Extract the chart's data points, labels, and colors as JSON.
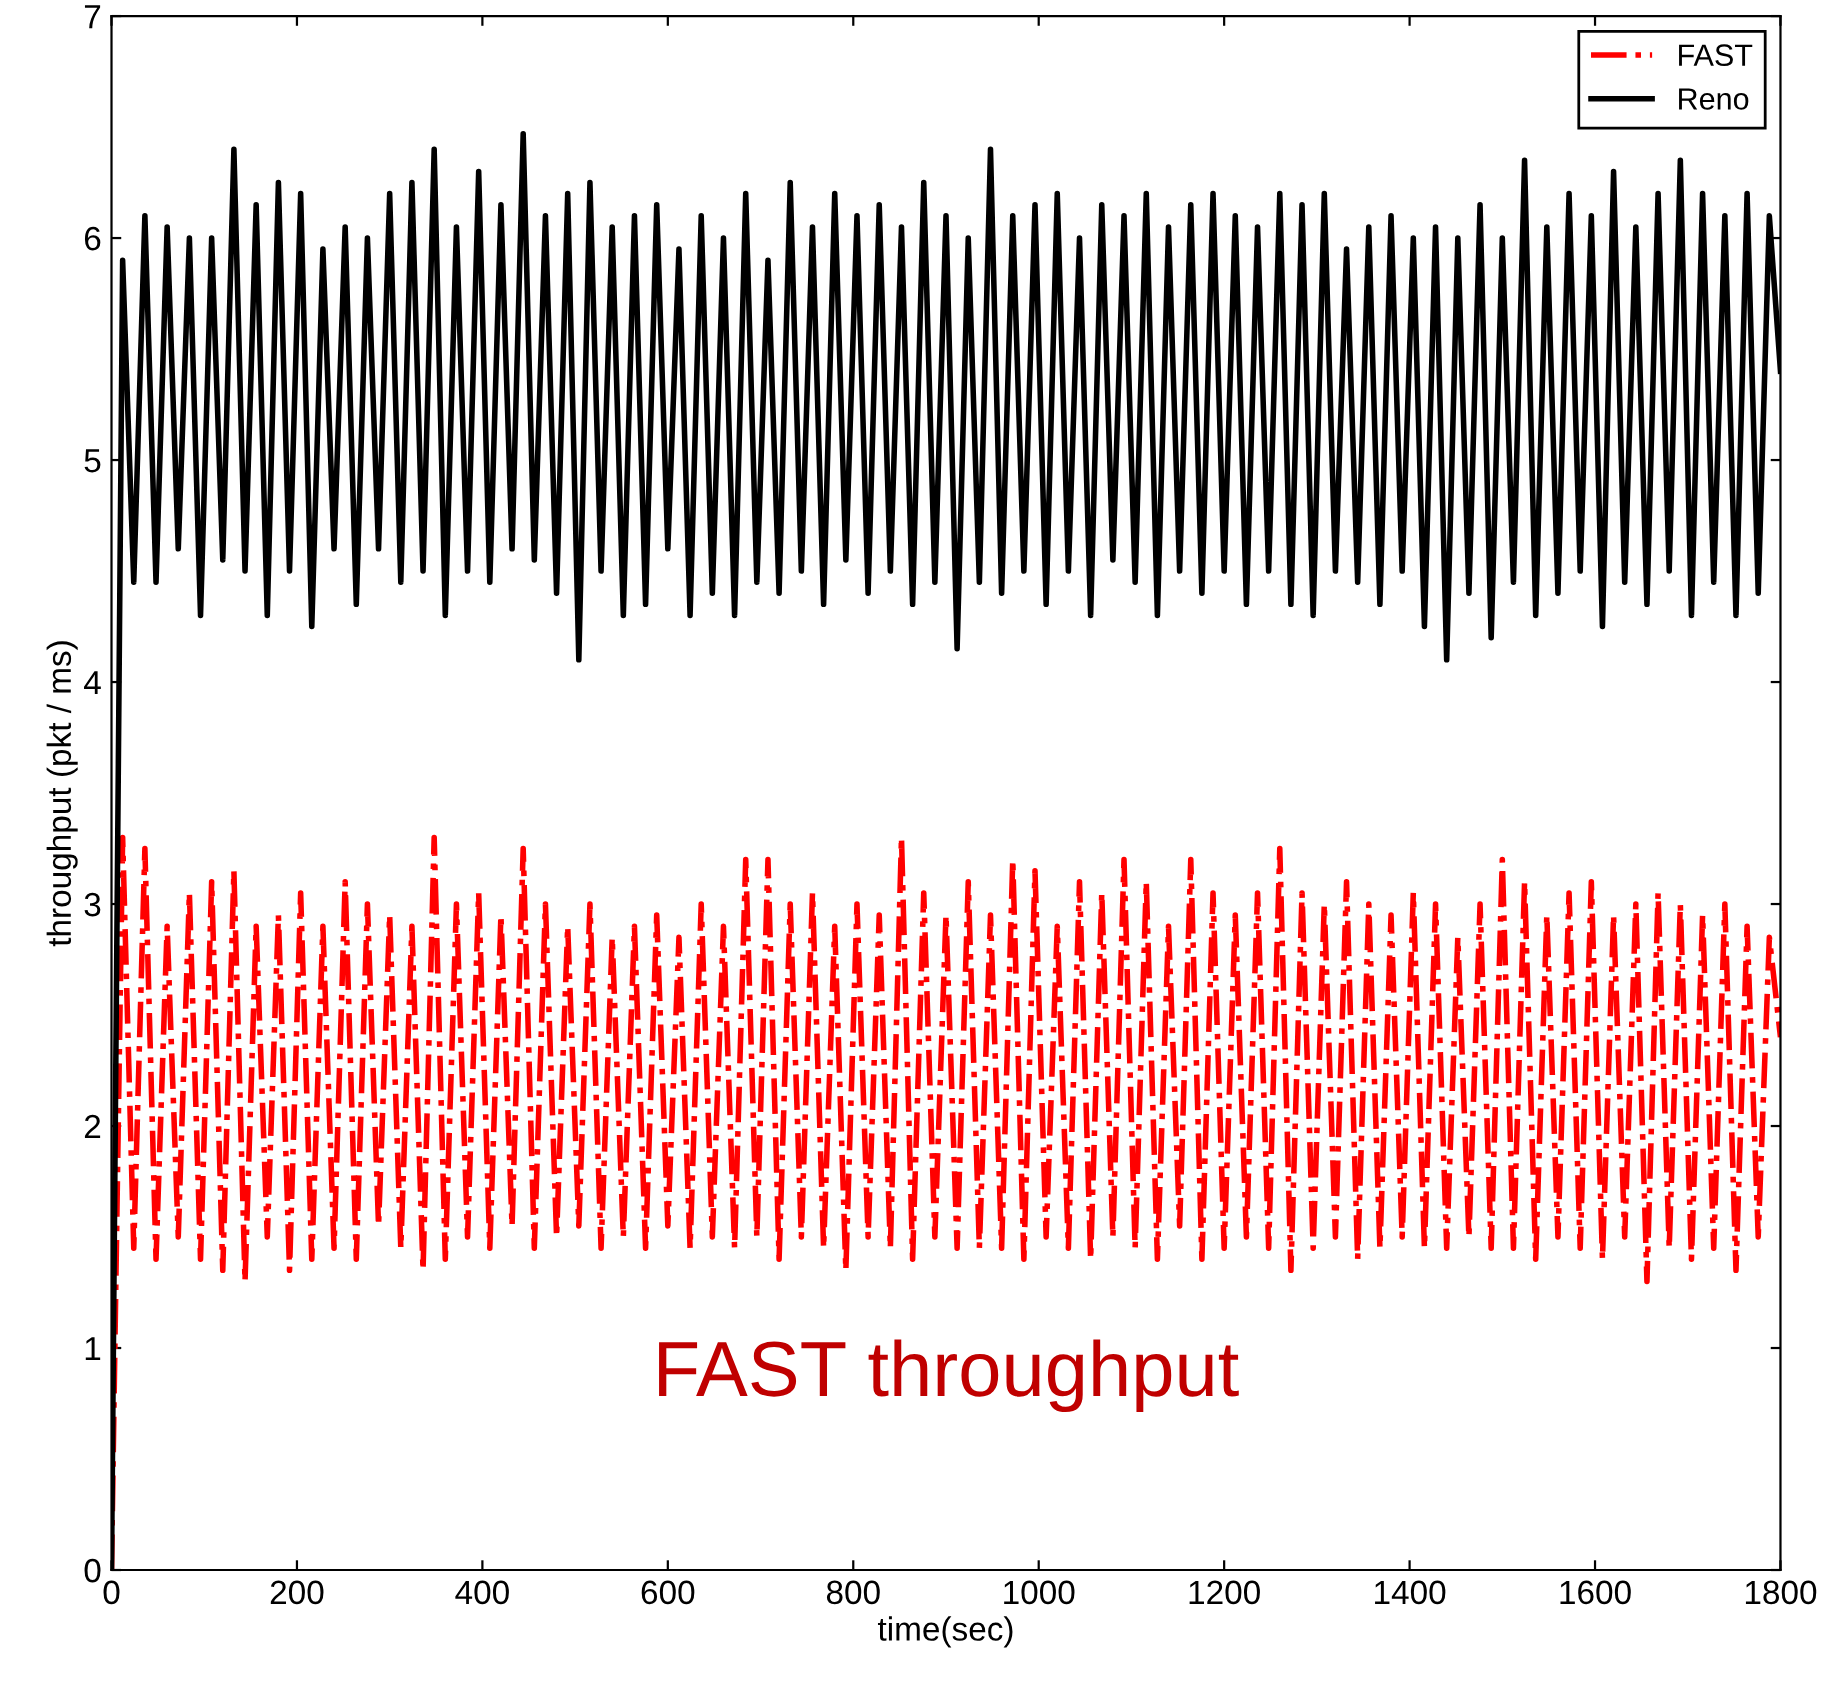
{
  "chart_data": {
    "type": "line",
    "xlabel": "time(sec)",
    "ylabel": "throughput (pkt / ms)",
    "x": [
      0,
      12,
      24,
      36,
      48,
      60,
      72,
      84,
      96,
      108,
      120,
      132,
      144,
      156,
      168,
      180,
      192,
      204,
      216,
      228,
      240,
      252,
      264,
      276,
      288,
      300,
      312,
      324,
      336,
      348,
      360,
      372,
      384,
      396,
      408,
      420,
      432,
      444,
      456,
      468,
      480,
      492,
      504,
      516,
      528,
      540,
      552,
      564,
      576,
      588,
      600,
      612,
      624,
      636,
      648,
      660,
      672,
      684,
      696,
      708,
      720,
      732,
      744,
      756,
      768,
      780,
      792,
      804,
      816,
      828,
      840,
      852,
      864,
      876,
      888,
      900,
      912,
      924,
      936,
      948,
      960,
      972,
      984,
      996,
      1008,
      1020,
      1032,
      1044,
      1056,
      1068,
      1080,
      1092,
      1104,
      1116,
      1128,
      1140,
      1152,
      1164,
      1176,
      1188,
      1200,
      1212,
      1224,
      1236,
      1248,
      1260,
      1272,
      1284,
      1296,
      1308,
      1320,
      1332,
      1344,
      1356,
      1368,
      1380,
      1392,
      1404,
      1416,
      1428,
      1440,
      1452,
      1464,
      1476,
      1488,
      1500,
      1512,
      1524,
      1536,
      1548,
      1560,
      1572,
      1584,
      1596,
      1608,
      1620,
      1632,
      1644,
      1656,
      1668,
      1680,
      1692,
      1704,
      1716,
      1728,
      1740,
      1752,
      1764,
      1776,
      1788,
      1800
    ],
    "series": [
      {
        "name": "FAST",
        "color": "#ff0000",
        "line_style": "dashdot",
        "values": [
          0,
          3.3,
          1.45,
          3.25,
          1.4,
          2.9,
          1.5,
          3.05,
          1.4,
          3.1,
          1.35,
          3.15,
          1.3,
          2.9,
          1.5,
          2.95,
          1.35,
          3.05,
          1.4,
          2.9,
          1.45,
          3.1,
          1.4,
          3.0,
          1.55,
          2.95,
          1.45,
          2.9,
          1.35,
          3.3,
          1.4,
          3.0,
          1.5,
          3.05,
          1.45,
          2.95,
          1.55,
          3.25,
          1.45,
          3.0,
          1.5,
          2.9,
          1.55,
          3.0,
          1.45,
          2.85,
          1.5,
          2.9,
          1.45,
          2.95,
          1.55,
          2.85,
          1.45,
          3.0,
          1.5,
          2.9,
          1.45,
          3.2,
          1.5,
          3.2,
          1.4,
          3.0,
          1.5,
          3.05,
          1.45,
          2.9,
          1.35,
          3.0,
          1.5,
          2.95,
          1.45,
          3.3,
          1.4,
          3.05,
          1.5,
          2.95,
          1.45,
          3.1,
          1.45,
          2.95,
          1.45,
          3.2,
          1.4,
          3.15,
          1.5,
          2.9,
          1.45,
          3.1,
          1.4,
          3.05,
          1.5,
          3.2,
          1.45,
          3.1,
          1.4,
          2.9,
          1.55,
          3.2,
          1.4,
          3.05,
          1.45,
          2.95,
          1.5,
          3.05,
          1.45,
          3.25,
          1.35,
          3.05,
          1.45,
          3.0,
          1.5,
          3.1,
          1.4,
          3.0,
          1.45,
          2.95,
          1.5,
          3.05,
          1.45,
          3.0,
          1.45,
          2.85,
          1.5,
          3.0,
          1.45,
          3.2,
          1.45,
          3.1,
          1.4,
          2.95,
          1.5,
          3.05,
          1.45,
          3.1,
          1.4,
          2.95,
          1.5,
          3.0,
          1.3,
          3.05,
          1.45,
          3.0,
          1.4,
          2.95,
          1.45,
          3.0,
          1.35,
          2.9,
          1.5,
          2.85,
          2.4
        ]
      },
      {
        "name": "Reno",
        "color": "#000000",
        "line_style": "solid",
        "values": [
          0,
          5.9,
          4.45,
          6.1,
          4.45,
          6.05,
          4.6,
          6.0,
          4.3,
          6.0,
          4.55,
          6.4,
          4.5,
          6.15,
          4.3,
          6.25,
          4.5,
          6.2,
          4.25,
          5.95,
          4.6,
          6.05,
          4.35,
          6.0,
          4.6,
          6.2,
          4.45,
          6.25,
          4.5,
          6.4,
          4.3,
          6.05,
          4.5,
          6.3,
          4.45,
          6.15,
          4.6,
          6.47,
          4.55,
          6.1,
          4.4,
          6.2,
          4.1,
          6.25,
          4.5,
          6.05,
          4.3,
          6.1,
          4.35,
          6.15,
          4.6,
          5.95,
          4.3,
          6.1,
          4.4,
          6.0,
          4.3,
          6.2,
          4.45,
          5.9,
          4.4,
          6.25,
          4.5,
          6.05,
          4.35,
          6.2,
          4.55,
          6.1,
          4.4,
          6.15,
          4.5,
          6.05,
          4.35,
          6.25,
          4.45,
          6.1,
          4.15,
          6.0,
          4.45,
          6.4,
          4.4,
          6.1,
          4.5,
          6.15,
          4.35,
          6.2,
          4.5,
          6.0,
          4.3,
          6.15,
          4.55,
          6.1,
          4.45,
          6.2,
          4.3,
          6.05,
          4.5,
          6.15,
          4.4,
          6.2,
          4.5,
          6.1,
          4.35,
          6.05,
          4.5,
          6.2,
          4.35,
          6.15,
          4.3,
          6.2,
          4.5,
          5.95,
          4.45,
          6.05,
          4.35,
          6.1,
          4.5,
          6.0,
          4.25,
          6.05,
          4.1,
          6.0,
          4.4,
          6.15,
          4.2,
          6.0,
          4.45,
          6.35,
          4.3,
          6.05,
          4.4,
          6.2,
          4.5,
          6.1,
          4.25,
          6.3,
          4.45,
          6.05,
          4.35,
          6.2,
          4.5,
          6.35,
          4.3,
          6.2,
          4.45,
          6.1,
          4.3,
          6.2,
          4.4,
          6.1,
          5.4
        ]
      }
    ],
    "xlim": [
      0,
      1800
    ],
    "xticks": [
      0,
      200,
      400,
      600,
      800,
      1000,
      1200,
      1400,
      1600,
      1800
    ],
    "ylim": [
      0,
      7
    ],
    "yticks": [
      0,
      1,
      2,
      3,
      4,
      5,
      6,
      7
    ],
    "grid": false,
    "legend": "top right",
    "marker": "none",
    "annotations": [
      "FAST throughput"
    ]
  }
}
